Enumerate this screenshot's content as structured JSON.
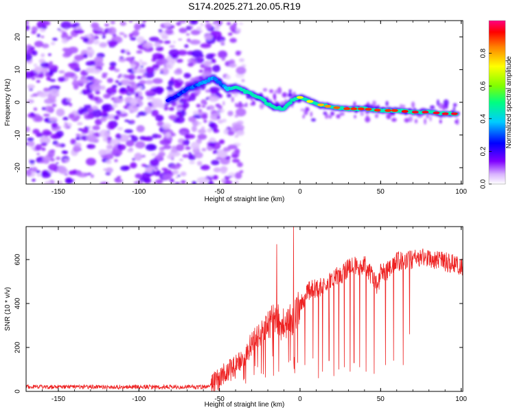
{
  "title": "S174.2025.271.20.05.R19",
  "chart_data": [
    {
      "type": "heatmap",
      "name": "spectrogram",
      "xlabel": "Height of straight line (km)",
      "ylabel": "Frequency (Hz)",
      "xlim": [
        -170,
        101
      ],
      "ylim": [
        -25,
        25
      ],
      "xticks": [
        -150,
        -100,
        -50,
        0,
        50,
        100
      ],
      "xtick_labels": [
        "-150",
        "-100",
        "-50",
        "0",
        "50",
        "100"
      ],
      "yticks": [
        -20,
        -10,
        0,
        10,
        20
      ],
      "ytick_labels": [
        "-20",
        "-10",
        "0",
        "10",
        "20"
      ],
      "ridge": {
        "x": [
          -82,
          -75,
          -68,
          -60,
          -54,
          -50,
          -45,
          -40,
          -35,
          -30,
          -25,
          -20,
          -15,
          -10,
          -5,
          0,
          5,
          10,
          20,
          30,
          40,
          50,
          60,
          70,
          80,
          90,
          97
        ],
        "freq": [
          0.5,
          2.5,
          4.5,
          6,
          7.5,
          6,
          4,
          4.5,
          3.5,
          2.5,
          1.5,
          -0.5,
          -1.5,
          -2,
          0.5,
          1.5,
          0.5,
          -0.5,
          -1.5,
          -2,
          -2,
          -2.5,
          -2.5,
          -3,
          -3,
          -3.5,
          -3.5
        ],
        "amplitude": [
          0.25,
          0.3,
          0.3,
          0.35,
          0.35,
          0.3,
          0.4,
          0.5,
          0.55,
          0.6,
          0.55,
          0.5,
          0.55,
          0.6,
          0.65,
          0.7,
          0.7,
          0.75,
          0.85,
          0.9,
          0.9,
          0.9,
          0.9,
          0.95,
          0.95,
          0.95,
          0.95
        ]
      },
      "noise_region_x": [
        -170,
        -55
      ],
      "colorbar": {
        "label": "Normalized spectral amplitude",
        "range": [
          0,
          1
        ],
        "ticks": [
          0.0,
          0.2,
          0.4,
          0.6,
          0.8
        ],
        "tick_labels": [
          "0.0",
          "0.2",
          "0.4",
          "0.6",
          "0.8"
        ],
        "colors": [
          "#ffffff",
          "#d9b3ff",
          "#7f00ff",
          "#0000ff",
          "#00ccff",
          "#00ff80",
          "#80ff00",
          "#ffff00",
          "#ff8000",
          "#ff0000",
          "#ff0080"
        ]
      }
    },
    {
      "type": "line",
      "name": "snr",
      "xlabel": "Height of straight line (km)",
      "ylabel": "SNR (10 * v/v)",
      "xlim": [
        -170,
        101
      ],
      "ylim": [
        0,
        750
      ],
      "xticks": [
        -150,
        -100,
        -50,
        0,
        50,
        100
      ],
      "xtick_labels": [
        "-150",
        "-100",
        "-50",
        "0",
        "50",
        "100"
      ],
      "yticks": [
        0,
        200,
        400,
        600
      ],
      "ytick_labels": [
        "0",
        "200",
        "400",
        "600"
      ],
      "color": "#ee2222",
      "x": [
        -170,
        -60,
        -55,
        -50,
        -45,
        -40,
        -35,
        -30,
        -25,
        -20,
        -15,
        -10,
        -5,
        0,
        5,
        10,
        15,
        20,
        25,
        30,
        35,
        40,
        45,
        48,
        50,
        55,
        60,
        65,
        70,
        75,
        80,
        85,
        90,
        95,
        100
      ],
      "baseline": [
        20,
        20,
        30,
        60,
        90,
        110,
        150,
        220,
        260,
        310,
        330,
        300,
        330,
        390,
        460,
        470,
        480,
        510,
        530,
        560,
        570,
        580,
        520,
        470,
        540,
        550,
        590,
        600,
        600,
        610,
        600,
        600,
        590,
        580,
        560
      ],
      "spikes": [
        {
          "x": -14.5,
          "y": 670
        },
        {
          "x": -10.5,
          "y": 260
        },
        {
          "x": -6,
          "y": 140
        },
        {
          "x": -4,
          "y": 750
        },
        {
          "x": -1.5,
          "y": 130
        },
        {
          "x": 3,
          "y": 120
        },
        {
          "x": 8,
          "y": 150
        },
        {
          "x": 11.5,
          "y": 60
        },
        {
          "x": 14,
          "y": 90
        },
        {
          "x": 18,
          "y": 140
        },
        {
          "x": 21,
          "y": 70
        },
        {
          "x": 24,
          "y": 100
        },
        {
          "x": 27.5,
          "y": 110
        },
        {
          "x": 31,
          "y": 90
        },
        {
          "x": 33.5,
          "y": 130
        },
        {
          "x": 37,
          "y": 110
        },
        {
          "x": 41,
          "y": 90
        },
        {
          "x": 46,
          "y": 80
        },
        {
          "x": 53,
          "y": 120
        },
        {
          "x": 58,
          "y": 140
        },
        {
          "x": 64,
          "y": 120
        },
        {
          "x": 68,
          "y": 260
        }
      ]
    }
  ]
}
